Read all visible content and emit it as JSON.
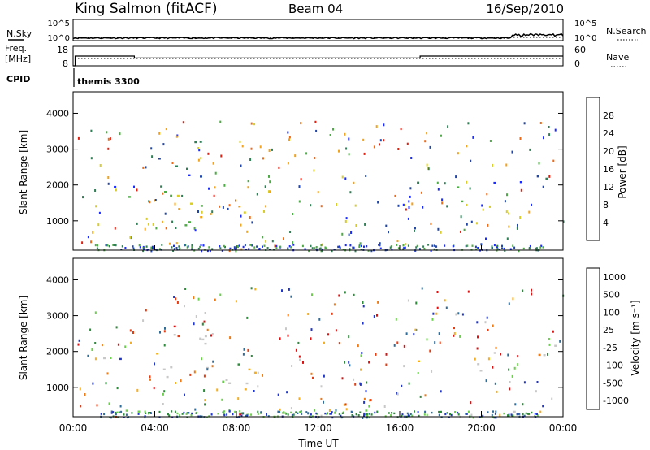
{
  "header": {
    "station": "King Salmon (fitACF)",
    "beam": "Beam 04",
    "date": "16/Sep/2010"
  },
  "chart_data": [
    {
      "type": "line",
      "panel": "noise",
      "left_labels": [
        "N.Sky"
      ],
      "right_labels": [
        "N.Search"
      ],
      "left_ticks": [
        "10^5",
        "10^0"
      ],
      "right_ticks": [
        "10^5",
        "10^0"
      ]
    },
    {
      "type": "line",
      "panel": "frequency",
      "left_labels": [
        "Freq.",
        "[MHz]"
      ],
      "right_labels": [
        "Nave"
      ],
      "left_ticks": [
        "18",
        "8"
      ],
      "right_ticks": [
        "60",
        "0"
      ],
      "freq_steps": [
        {
          "t": 0.0,
          "mhz": 8
        },
        {
          "t": 0.1,
          "mhz": 13
        },
        {
          "t": 3.0,
          "mhz": 12
        },
        {
          "t": 17.0,
          "mhz": 13
        },
        {
          "t": 24.0,
          "mhz": 13
        }
      ]
    },
    {
      "type": "table",
      "panel": "cpid",
      "label": "CPID",
      "program": "themis 3300"
    },
    {
      "type": "heatmap",
      "panel": "power",
      "ylabel": "Slant Range [km]",
      "yticks": [
        "1000",
        "2000",
        "3000",
        "4000"
      ],
      "ylim": [
        180,
        4600
      ],
      "xlim": [
        0,
        24
      ],
      "colorbar_label": "Power [dB]",
      "colorbar_ticks": [
        "4",
        "8",
        "12",
        "16",
        "20",
        "24",
        "28"
      ],
      "colors": [
        "#1a2bff",
        "#2046a8",
        "#2f7e55",
        "#4dab45",
        "#d8cc2a",
        "#f2a21b",
        "#ef6a17",
        "#e21f10"
      ],
      "blobs": [
        {
          "t0": 2.4,
          "t1": 6.6,
          "r0": 1350,
          "r1": 1750,
          "lvl": 4.2
        },
        {
          "t0": 3.8,
          "t1": 6.2,
          "r0": 1700,
          "r1": 2100,
          "lvl": 3.2
        },
        {
          "t0": 5.2,
          "t1": 8.9,
          "r0": 900,
          "r1": 1450,
          "lvl": 4.4
        },
        {
          "t0": 1.0,
          "t1": 4.5,
          "r0": 1750,
          "r1": 2100,
          "lvl": 1.8
        },
        {
          "t0": 4.0,
          "t1": 6.5,
          "r0": 2200,
          "r1": 3500,
          "lvl": 0.8
        },
        {
          "t0": 16.4,
          "t1": 17.0,
          "r0": 1600,
          "r1": 2100,
          "lvl": 2.2
        },
        {
          "t0": 16.6,
          "t1": 17.1,
          "r0": 700,
          "r1": 1000,
          "lvl": 2.5
        },
        {
          "t0": 18.4,
          "t1": 20.0,
          "r0": 1400,
          "r1": 2100,
          "lvl": 1.6
        },
        {
          "t0": 20.5,
          "t1": 21.6,
          "r0": 1500,
          "r1": 2100,
          "lvl": 1.2
        },
        {
          "t0": 21.5,
          "t1": 22.2,
          "r0": 1900,
          "r1": 2400,
          "lvl": 1.0
        },
        {
          "t0": 22.5,
          "t1": 24.0,
          "r0": 1900,
          "r1": 2400,
          "lvl": 0.9
        }
      ]
    },
    {
      "type": "heatmap",
      "panel": "velocity",
      "ylabel": "Slant Range [km]",
      "yticks": [
        "1000",
        "2000",
        "3000",
        "4000"
      ],
      "ylim": [
        180,
        4600
      ],
      "xlim": [
        0,
        24
      ],
      "xticks": [
        "00:00",
        "04:00",
        "08:00",
        "12:00",
        "16:00",
        "20:00",
        "00:00"
      ],
      "xlabel": "Time UT",
      "colorbar_label": "Velocity [m s⁻¹]",
      "colorbar_ticks": [
        "1000",
        "500",
        "100",
        "25",
        "-25",
        "-100",
        "-500",
        "-1000"
      ],
      "colors": [
        "#2036c8",
        "#2e6c9a",
        "#2c8a3a",
        "#6ad04a",
        "#c8c8c8",
        "#f5ae20",
        "#f07a12",
        "#e63c10",
        "#e01010"
      ],
      "blobs": [
        {
          "t0": 2.4,
          "t1": 6.6,
          "r0": 1300,
          "r1": 1750,
          "lvl": 4
        },
        {
          "t0": 0.5,
          "t1": 4.5,
          "r0": 1750,
          "r1": 2100,
          "lvl": 4
        },
        {
          "t0": 5.2,
          "t1": 8.9,
          "r0": 900,
          "r1": 1450,
          "lvl": 5
        },
        {
          "t0": 6.8,
          "t1": 8.9,
          "r0": 1100,
          "r1": 1800,
          "lvl": 3
        },
        {
          "t0": 4.0,
          "t1": 6.5,
          "r0": 2200,
          "r1": 3500,
          "lvl": 4
        },
        {
          "t0": 16.4,
          "t1": 17.0,
          "r0": 1600,
          "r1": 2100,
          "lvl": 2
        },
        {
          "t0": 18.4,
          "t1": 20.0,
          "r0": 1400,
          "r1": 2100,
          "lvl": 4
        },
        {
          "t0": 19.0,
          "t1": 19.4,
          "r0": 1100,
          "r1": 1500,
          "lvl": 6
        },
        {
          "t0": 20.5,
          "t1": 24.0,
          "r0": 1900,
          "r1": 2400,
          "lvl": 4
        },
        {
          "t0": 2.0,
          "t1": 22.0,
          "r0": 180,
          "r1": 420,
          "lvl": 3
        }
      ]
    }
  ]
}
